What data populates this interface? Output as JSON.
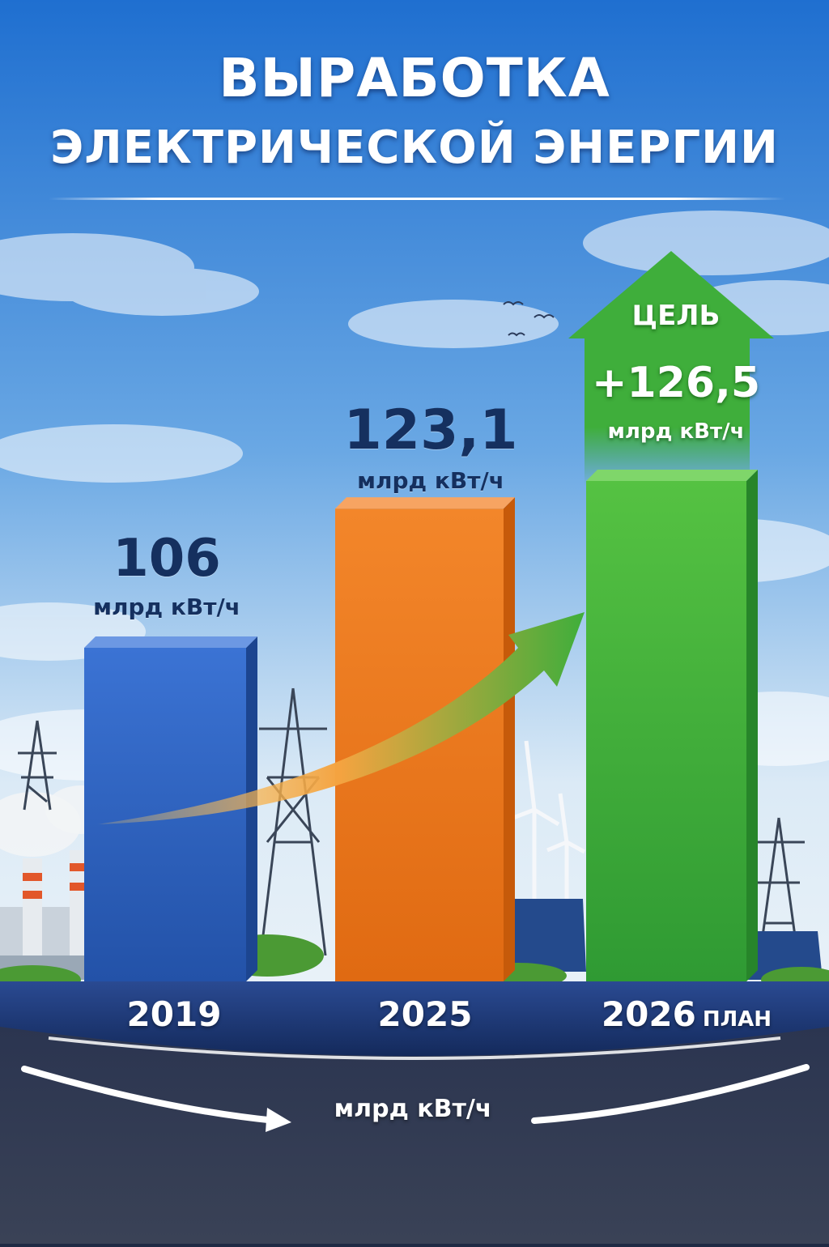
{
  "title_line1": "ВЫРАБОТКА",
  "title_line2": "ЭЛЕКТРИЧЕСКОЙ ЭНЕРГИИ",
  "goal": {
    "word": "ЦЕЛЬ",
    "value_text": "+126,5",
    "unit": "млрд кВт/ч"
  },
  "axis_unit": "млрд кВт/ч",
  "categories": [
    {
      "year": "2019",
      "suffix": "",
      "value_text": "106",
      "unit": "млрд кВт/ч"
    },
    {
      "year": "2025",
      "suffix": "",
      "value_text": "123,1",
      "unit": "млрд кВт/ч"
    },
    {
      "year": "2026",
      "suffix": "ПЛАН",
      "value_text": "",
      "unit": ""
    }
  ],
  "colors": {
    "bar_2019": "#2f63c4",
    "bar_2025": "#f07a1a",
    "bar_2026": "#3fae3b",
    "sky_top": "#1f6fd0",
    "sky_bottom": "#dbeaf6",
    "ground_band": "#1e3a78",
    "label_text": "#15305f"
  },
  "chart_data": {
    "type": "bar",
    "title": "ВЫРАБОТКА ЭЛЕКТРИЧЕСКОЙ ЭНЕРГИИ",
    "categories": [
      "2019",
      "2025",
      "2026 ПЛАН"
    ],
    "values": [
      106,
      123.1,
      126.5
    ],
    "unit": "млрд кВт/ч",
    "grid": false,
    "legend": "none"
  }
}
